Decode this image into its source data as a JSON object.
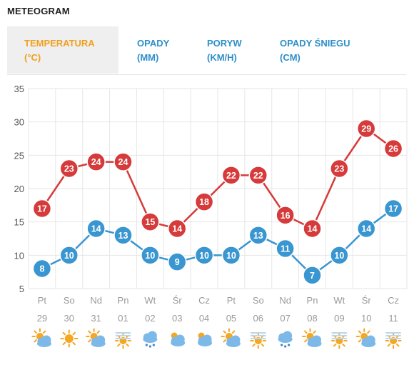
{
  "title": "METEOGRAM",
  "tabs": [
    {
      "line1": "TEMPERATURA",
      "line2": "(°C)",
      "active": true
    },
    {
      "line1": "OPADY",
      "line2": "(MM)",
      "active": false
    },
    {
      "line1": "PORYW",
      "line2": "(KM/H)",
      "active": false
    },
    {
      "line1": "OPADY ŚNIEGU",
      "line2": "(CM)",
      "active": false
    }
  ],
  "colors": {
    "max_series": "#d63a3a",
    "min_series": "#3a96d0",
    "active_tab": "#f0a020",
    "inactive_tab": "#2d8fc9"
  },
  "chart_data": {
    "type": "line",
    "ylim": [
      5,
      35
    ],
    "yticks": [
      5,
      10,
      15,
      20,
      25,
      30,
      35
    ],
    "grid": true,
    "days": [
      "Pt",
      "So",
      "Nd",
      "Pn",
      "Wt",
      "Śr",
      "Cz",
      "Pt",
      "So",
      "Nd",
      "Pn",
      "Wt",
      "Śr",
      "Cz"
    ],
    "dates": [
      "29",
      "30",
      "31",
      "01",
      "02",
      "03",
      "04",
      "05",
      "06",
      "07",
      "08",
      "09",
      "10",
      "11"
    ],
    "weather_icons": [
      "sun-cloud-icon",
      "sun-icon",
      "sun-cloud-icon",
      "sun-haze-icon",
      "rain-cloud-icon",
      "cloud-icon",
      "cloud-icon",
      "sun-cloud-icon",
      "sun-haze-icon",
      "rain-cloud-icon",
      "sun-cloud-icon",
      "sun-haze-icon",
      "sun-cloud-icon",
      "sun-haze-icon"
    ],
    "series": [
      {
        "values": [
          17,
          23,
          24,
          24,
          15,
          14,
          18,
          22,
          22,
          16,
          14,
          23,
          29,
          26
        ],
        "color": "#d63a3a"
      },
      {
        "values": [
          8,
          10,
          14,
          13,
          10,
          9,
          10,
          10,
          13,
          11,
          7,
          10,
          14,
          17
        ],
        "color": "#3a96d0"
      }
    ]
  }
}
